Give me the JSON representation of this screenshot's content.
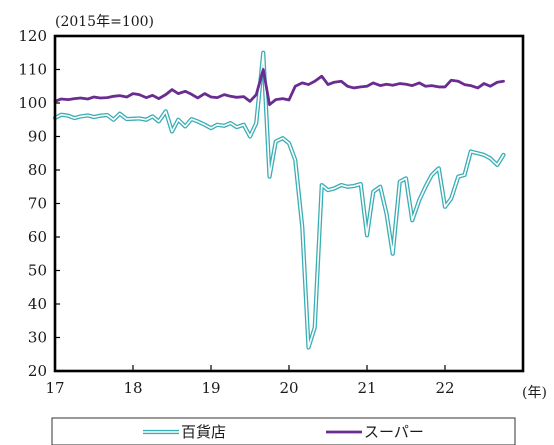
{
  "chart_data": {
    "type": "line",
    "y_unit_label": "(2015年=100)",
    "x_unit_label": "(年)",
    "ylim": [
      20,
      120
    ],
    "y_ticks": [
      20,
      30,
      40,
      50,
      60,
      70,
      80,
      90,
      100,
      110,
      120
    ],
    "xlim": [
      2017,
      2023
    ],
    "x_ticks": [
      {
        "value": 2017,
        "label": "17"
      },
      {
        "value": 2018,
        "label": "18"
      },
      {
        "value": 2019,
        "label": "19"
      },
      {
        "value": 2020,
        "label": "20"
      },
      {
        "value": 2021,
        "label": "21"
      },
      {
        "value": 2022,
        "label": "22"
      }
    ],
    "grid": false,
    "legend_position": "bottom",
    "series": [
      {
        "name": "百貨店",
        "style": "double",
        "color": "#3aaeb5",
        "points": [
          [
            2017.0,
            95.5
          ],
          [
            2017.08,
            96.5
          ],
          [
            2017.17,
            96.2
          ],
          [
            2017.25,
            95.5
          ],
          [
            2017.33,
            96.0
          ],
          [
            2017.42,
            96.3
          ],
          [
            2017.5,
            95.8
          ],
          [
            2017.58,
            96.2
          ],
          [
            2017.67,
            96.4
          ],
          [
            2017.75,
            95.0
          ],
          [
            2017.83,
            96.8
          ],
          [
            2017.92,
            95.2
          ],
          [
            2018.0,
            95.3
          ],
          [
            2018.08,
            95.4
          ],
          [
            2018.17,
            95.0
          ],
          [
            2018.25,
            96.0
          ],
          [
            2018.33,
            94.5
          ],
          [
            2018.42,
            97.5
          ],
          [
            2018.5,
            91.5
          ],
          [
            2018.58,
            95.0
          ],
          [
            2018.67,
            93.0
          ],
          [
            2018.75,
            95.2
          ],
          [
            2018.83,
            94.5
          ],
          [
            2018.92,
            93.5
          ],
          [
            2019.0,
            92.5
          ],
          [
            2019.08,
            93.5
          ],
          [
            2019.17,
            93.2
          ],
          [
            2019.25,
            94.0
          ],
          [
            2019.33,
            92.8
          ],
          [
            2019.42,
            93.5
          ],
          [
            2019.5,
            90.0
          ],
          [
            2019.58,
            94.0
          ],
          [
            2019.67,
            115.0
          ],
          [
            2019.75,
            78.0
          ],
          [
            2019.83,
            88.5
          ],
          [
            2019.92,
            89.5
          ],
          [
            2020.0,
            88.0
          ],
          [
            2020.08,
            83.0
          ],
          [
            2020.17,
            63.0
          ],
          [
            2020.25,
            27.0
          ],
          [
            2020.33,
            33.0
          ],
          [
            2020.42,
            75.5
          ],
          [
            2020.5,
            74.0
          ],
          [
            2020.58,
            74.5
          ],
          [
            2020.67,
            75.5
          ],
          [
            2020.75,
            75.0
          ],
          [
            2020.83,
            75.2
          ],
          [
            2020.92,
            75.8
          ],
          [
            2021.0,
            60.5
          ],
          [
            2021.08,
            73.5
          ],
          [
            2021.17,
            75.0
          ],
          [
            2021.25,
            67.0
          ],
          [
            2021.33,
            55.0
          ],
          [
            2021.42,
            76.5
          ],
          [
            2021.5,
            77.5
          ],
          [
            2021.58,
            65.0
          ],
          [
            2021.67,
            71.0
          ],
          [
            2021.75,
            75.0
          ],
          [
            2021.83,
            78.5
          ],
          [
            2021.92,
            80.5
          ],
          [
            2022.0,
            69.0
          ],
          [
            2022.08,
            71.5
          ],
          [
            2022.17,
            78.0
          ],
          [
            2022.25,
            78.5
          ],
          [
            2022.33,
            85.5
          ],
          [
            2022.42,
            85.0
          ],
          [
            2022.5,
            84.5
          ],
          [
            2022.58,
            83.5
          ],
          [
            2022.67,
            81.5
          ],
          [
            2022.75,
            84.5
          ]
        ]
      },
      {
        "name": "スーパー",
        "style": "solid",
        "color": "#6a2c91",
        "points": [
          [
            2017.0,
            100.5
          ],
          [
            2017.08,
            101.2
          ],
          [
            2017.17,
            101.0
          ],
          [
            2017.25,
            101.3
          ],
          [
            2017.33,
            101.5
          ],
          [
            2017.42,
            101.2
          ],
          [
            2017.5,
            101.8
          ],
          [
            2017.58,
            101.5
          ],
          [
            2017.67,
            101.6
          ],
          [
            2017.75,
            102.0
          ],
          [
            2017.83,
            102.2
          ],
          [
            2017.92,
            101.8
          ],
          [
            2018.0,
            102.8
          ],
          [
            2018.08,
            102.5
          ],
          [
            2018.17,
            101.6
          ],
          [
            2018.25,
            102.3
          ],
          [
            2018.33,
            101.3
          ],
          [
            2018.42,
            102.5
          ],
          [
            2018.5,
            104.0
          ],
          [
            2018.58,
            102.8
          ],
          [
            2018.67,
            103.5
          ],
          [
            2018.75,
            102.6
          ],
          [
            2018.83,
            101.5
          ],
          [
            2018.92,
            102.8
          ],
          [
            2019.0,
            101.8
          ],
          [
            2019.08,
            101.6
          ],
          [
            2019.17,
            102.5
          ],
          [
            2019.25,
            102.0
          ],
          [
            2019.33,
            101.7
          ],
          [
            2019.42,
            101.9
          ],
          [
            2019.5,
            100.5
          ],
          [
            2019.58,
            102.5
          ],
          [
            2019.67,
            110.0
          ],
          [
            2019.75,
            99.5
          ],
          [
            2019.83,
            101.0
          ],
          [
            2019.92,
            101.3
          ],
          [
            2020.0,
            100.9
          ],
          [
            2020.08,
            105.0
          ],
          [
            2020.17,
            106.0
          ],
          [
            2020.25,
            105.5
          ],
          [
            2020.33,
            106.5
          ],
          [
            2020.42,
            108.0
          ],
          [
            2020.5,
            105.5
          ],
          [
            2020.58,
            106.2
          ],
          [
            2020.67,
            106.5
          ],
          [
            2020.75,
            105.0
          ],
          [
            2020.83,
            104.5
          ],
          [
            2020.92,
            104.8
          ],
          [
            2021.0,
            105.0
          ],
          [
            2021.08,
            106.0
          ],
          [
            2021.17,
            105.2
          ],
          [
            2021.25,
            105.6
          ],
          [
            2021.33,
            105.3
          ],
          [
            2021.42,
            105.8
          ],
          [
            2021.5,
            105.6
          ],
          [
            2021.58,
            105.2
          ],
          [
            2021.67,
            106.0
          ],
          [
            2021.75,
            105.0
          ],
          [
            2021.83,
            105.2
          ],
          [
            2021.92,
            104.8
          ],
          [
            2022.0,
            104.8
          ],
          [
            2022.08,
            106.8
          ],
          [
            2022.17,
            106.5
          ],
          [
            2022.25,
            105.5
          ],
          [
            2022.33,
            105.2
          ],
          [
            2022.42,
            104.5
          ],
          [
            2022.5,
            105.8
          ],
          [
            2022.58,
            105.0
          ],
          [
            2022.67,
            106.2
          ],
          [
            2022.75,
            106.5
          ]
        ]
      }
    ]
  }
}
